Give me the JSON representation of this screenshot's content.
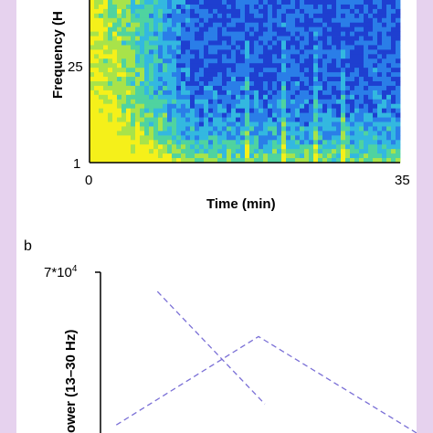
{
  "panels": [
    {
      "chart_data": {
        "type": "heatmap",
        "title": "",
        "xlabel": "Time (min)",
        "ylabel": "Frequency (H",
        "x_ticks": [
          {
            "value": 0,
            "label": "0"
          },
          {
            "value": 35,
            "label": "35"
          }
        ],
        "y_ticks": [
          {
            "value": 25,
            "label": "25"
          },
          {
            "value": 1,
            "label": "1"
          }
        ],
        "xlim": [
          0,
          35
        ],
        "colormap": [
          "#1e3fd0",
          "#2a7ee8",
          "#33b8e0",
          "#4fd3a0",
          "#a8e34a",
          "#f5f01a"
        ],
        "bright_until_min": 12,
        "grid": false
      }
    },
    {
      "panel_label": "b",
      "chart_data": {
        "type": "line",
        "title": "",
        "xlabel": "",
        "ylabel": "ower (13–30 Hz)",
        "y_top_label": "7*10",
        "y_top_exponent": "4",
        "series": [
          {
            "color": "#7a6fd6",
            "style": "dashed",
            "points": [
              [
                0.18,
                0.88
              ],
              [
                0.52,
                0.18
              ]
            ]
          },
          {
            "color": "#7a6fd6",
            "style": "dashed",
            "points": [
              [
                0.05,
                0.05
              ],
              [
                0.5,
                0.6
              ],
              [
                1.0,
                0.0
              ]
            ]
          }
        ],
        "grid": false
      }
    }
  ]
}
